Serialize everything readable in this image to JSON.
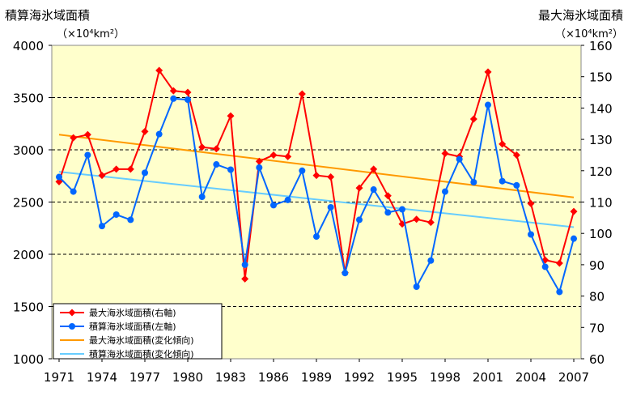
{
  "chart_data": {
    "type": "line",
    "left_axis": {
      "title": "積算海氷域面積",
      "unit": "（×10⁴km²）",
      "ylim": [
        1000,
        4000
      ],
      "ticks": [
        1000,
        1500,
        2000,
        2500,
        3000,
        3500,
        4000
      ]
    },
    "right_axis": {
      "title": "最大海氷域面積",
      "unit": "（×10⁴km²）",
      "ylim": [
        60,
        160
      ],
      "ticks": [
        60,
        70,
        80,
        90,
        100,
        110,
        120,
        130,
        140,
        150,
        160
      ]
    },
    "x": [
      1971,
      1972,
      1973,
      1974,
      1975,
      1976,
      1977,
      1978,
      1979,
      1980,
      1981,
      1982,
      1983,
      1984,
      1985,
      1986,
      1987,
      1988,
      1989,
      1990,
      1991,
      1992,
      1993,
      1994,
      1995,
      1996,
      1997,
      1998,
      1999,
      2000,
      2001,
      2002,
      2003,
      2004,
      2005,
      2006,
      2007
    ],
    "x_tick_labels": [
      "1971",
      "1974",
      "1977",
      "1980",
      "1983",
      "1986",
      "1989",
      "1992",
      "1995",
      "1998",
      "2001",
      "2004",
      "2007"
    ],
    "grid": "horizontal dashed at left-axis 1500, 2000, 2500, 3000, 3500",
    "legend_position": "bottom-left",
    "series": [
      {
        "name": "最大海氷域面積(右軸)",
        "axis": "right",
        "color": "#ff0000",
        "marker": "diamond",
        "values": [
          116.5,
          130.5,
          131.5,
          118.5,
          120.5,
          120.5,
          132.5,
          152.0,
          145.5,
          145.0,
          127.5,
          127.0,
          137.5,
          85.5,
          123.0,
          125.0,
          124.5,
          144.5,
          118.5,
          118.0,
          87.5,
          114.5,
          120.5,
          112.0,
          103.0,
          104.5,
          103.5,
          125.5,
          124.5,
          136.5,
          151.5,
          128.5,
          125.0,
          109.5,
          91.5,
          90.5,
          107.0
        ]
      },
      {
        "name": "積算海氷域面積(左軸)",
        "axis": "left",
        "color": "#0066ff",
        "marker": "circle",
        "values": [
          2740,
          2600,
          2950,
          2270,
          2380,
          2330,
          2780,
          3150,
          3490,
          3480,
          2550,
          2860,
          2810,
          1900,
          2830,
          2470,
          2520,
          2800,
          2170,
          2450,
          1820,
          2330,
          2620,
          2400,
          2430,
          1690,
          1940,
          2600,
          2910,
          2690,
          3430,
          2700,
          2660,
          2190,
          1880,
          1640,
          2150
        ]
      },
      {
        "name": "最大海氷域面積(変化傾向)",
        "axis": "right",
        "color": "#ff9900",
        "values_at_ends": [
          131.5,
          111.5
        ]
      },
      {
        "name": "積算海氷域面積(変化傾向)",
        "axis": "left",
        "color": "#66ccff",
        "values_at_ends": [
          2790,
          2260
        ]
      }
    ]
  }
}
